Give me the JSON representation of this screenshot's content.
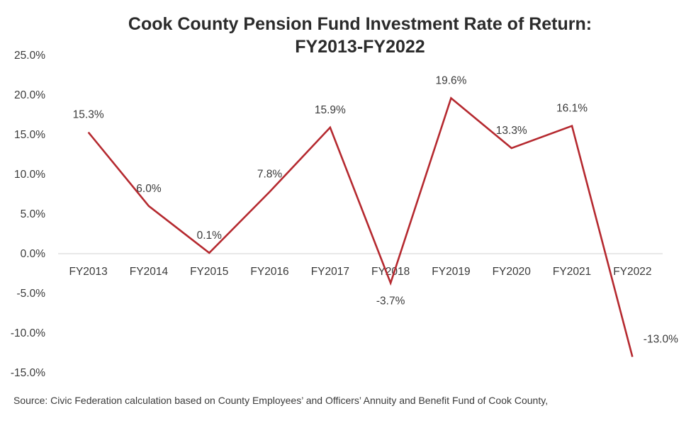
{
  "chart_data": {
    "type": "line",
    "title_line1": "Cook County Pension Fund Investment Rate of Return:",
    "title_line2": "FY2013-FY2022",
    "categories": [
      "FY2013",
      "FY2014",
      "FY2015",
      "FY2016",
      "FY2017",
      "FY2018",
      "FY2019",
      "FY2020",
      "FY2021",
      "FY2022"
    ],
    "series": [
      {
        "values": [
          15.3,
          6.0,
          0.1,
          7.8,
          15.9,
          -3.7,
          19.6,
          13.3,
          16.1,
          -13.0
        ],
        "labels": [
          "15.3%",
          "6.0%",
          "0.1%",
          "7.8%",
          "15.9%",
          "-3.7%",
          "19.6%",
          "13.3%",
          "16.1%",
          "-13.0%"
        ]
      }
    ],
    "ylim": [
      -15,
      25
    ],
    "yticks": [
      25,
      20,
      15,
      10,
      5,
      0,
      -5,
      -10,
      -15
    ],
    "ytick_labels": [
      "25.0%",
      "20.0%",
      "15.0%",
      "10.0%",
      "5.0%",
      "0.0%",
      "-5.0%",
      "-10.0%",
      "-15.0%"
    ],
    "line_color": "#b5292f",
    "axis_color": "#d0d0d0",
    "grid": false,
    "legend": "none",
    "source": "Source: Civic Federation calculation based on County Employees’ and Officers’ Annuity and Benefit Fund of Cook County,"
  }
}
